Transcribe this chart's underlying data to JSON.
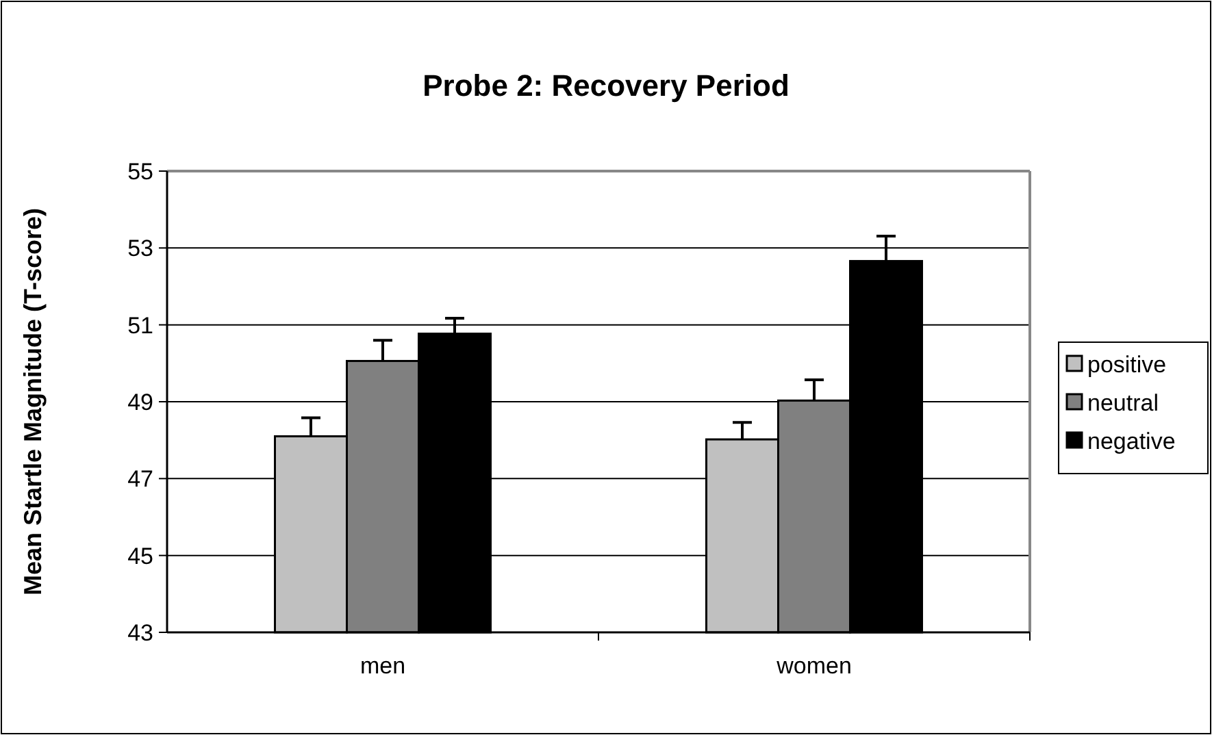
{
  "chart_data": {
    "type": "bar",
    "title": "Probe 2: Recovery Period",
    "ylabel": "Mean Startle Magnitude (T-score)",
    "categories": [
      "men",
      "women"
    ],
    "series": [
      {
        "name": "positive",
        "color": "#c0c0c0",
        "values": [
          48.1,
          48.02
        ],
        "errors": [
          [
            48.1,
            48.58
          ],
          [
            48.02,
            48.46
          ]
        ]
      },
      {
        "name": "neutral",
        "color": "#808080",
        "values": [
          50.06,
          49.03
        ],
        "errors": [
          [
            50.06,
            50.6
          ],
          [
            49.03,
            49.57
          ]
        ]
      },
      {
        "name": "negative",
        "color": "#000000",
        "values": [
          50.77,
          52.66
        ],
        "errors": [
          [
            50.77,
            51.17
          ],
          [
            52.66,
            53.31
          ]
        ]
      }
    ],
    "ylim": [
      43,
      55
    ],
    "yticks": [
      43,
      45,
      47,
      49,
      51,
      53,
      55
    ],
    "grid": "y",
    "legend": "right"
  }
}
